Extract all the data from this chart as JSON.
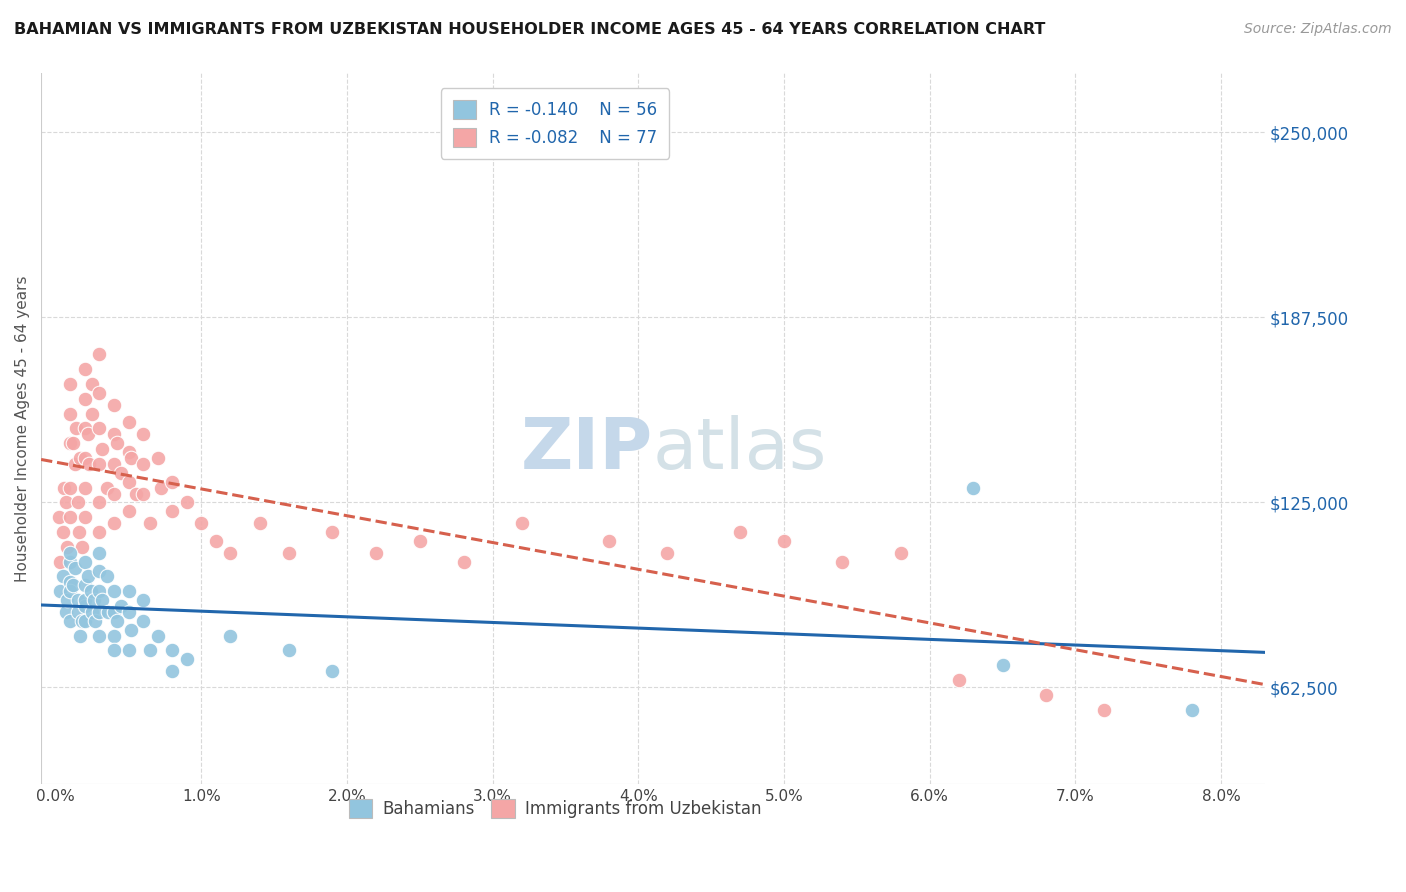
{
  "title": "BAHAMIAN VS IMMIGRANTS FROM UZBEKISTAN HOUSEHOLDER INCOME AGES 45 - 64 YEARS CORRELATION CHART",
  "source": "Source: ZipAtlas.com",
  "ylabel": "Householder Income Ages 45 - 64 years",
  "ytick_labels": [
    "$62,500",
    "$125,000",
    "$187,500",
    "$250,000"
  ],
  "ytick_vals": [
    62500,
    125000,
    187500,
    250000
  ],
  "xlabel_ticks": [
    "0.0%",
    "1.0%",
    "2.0%",
    "3.0%",
    "4.0%",
    "5.0%",
    "6.0%",
    "7.0%",
    "8.0%"
  ],
  "xlabel_vals": [
    0.0,
    0.01,
    0.02,
    0.03,
    0.04,
    0.05,
    0.06,
    0.07,
    0.08
  ],
  "ylim": [
    30000,
    270000
  ],
  "xlim": [
    -0.001,
    0.083
  ],
  "legend_r_blue": "-0.140",
  "legend_n_blue": "56",
  "legend_r_pink": "-0.082",
  "legend_n_pink": "77",
  "blue_color": "#92c5de",
  "pink_color": "#f4a6a6",
  "blue_line_color": "#2166ac",
  "pink_line_color": "#d6604d",
  "title_color": "#1a1a1a",
  "source_color": "#999999",
  "watermark_color": "#c5d8ea",
  "grid_color": "#d9d9d9",
  "blue_scatter_x": [
    0.0003,
    0.0005,
    0.0007,
    0.0008,
    0.001,
    0.001,
    0.001,
    0.001,
    0.001,
    0.0012,
    0.0013,
    0.0015,
    0.0015,
    0.0017,
    0.0018,
    0.002,
    0.002,
    0.002,
    0.002,
    0.002,
    0.0022,
    0.0024,
    0.0025,
    0.0026,
    0.0027,
    0.003,
    0.003,
    0.003,
    0.003,
    0.003,
    0.0032,
    0.0035,
    0.0036,
    0.004,
    0.004,
    0.004,
    0.004,
    0.0042,
    0.0045,
    0.005,
    0.005,
    0.005,
    0.0052,
    0.006,
    0.006,
    0.0065,
    0.007,
    0.008,
    0.008,
    0.009,
    0.012,
    0.016,
    0.019,
    0.063,
    0.065,
    0.078
  ],
  "blue_scatter_y": [
    95000,
    100000,
    88000,
    92000,
    105000,
    98000,
    108000,
    95000,
    85000,
    97000,
    103000,
    88000,
    92000,
    80000,
    85000,
    105000,
    97000,
    90000,
    85000,
    92000,
    100000,
    95000,
    88000,
    92000,
    85000,
    108000,
    102000,
    95000,
    88000,
    80000,
    92000,
    100000,
    88000,
    95000,
    88000,
    80000,
    75000,
    85000,
    90000,
    95000,
    88000,
    75000,
    82000,
    92000,
    85000,
    75000,
    80000,
    75000,
    68000,
    72000,
    80000,
    75000,
    68000,
    130000,
    70000,
    55000
  ],
  "pink_scatter_x": [
    0.0002,
    0.0003,
    0.0005,
    0.0006,
    0.0007,
    0.0008,
    0.001,
    0.001,
    0.001,
    0.001,
    0.001,
    0.0012,
    0.0013,
    0.0014,
    0.0015,
    0.0016,
    0.0017,
    0.0018,
    0.002,
    0.002,
    0.002,
    0.002,
    0.002,
    0.002,
    0.0022,
    0.0023,
    0.0025,
    0.0025,
    0.003,
    0.003,
    0.003,
    0.003,
    0.003,
    0.003,
    0.0032,
    0.0035,
    0.004,
    0.004,
    0.004,
    0.004,
    0.004,
    0.0042,
    0.0045,
    0.005,
    0.005,
    0.005,
    0.005,
    0.0052,
    0.0055,
    0.006,
    0.006,
    0.006,
    0.0065,
    0.007,
    0.0072,
    0.008,
    0.008,
    0.009,
    0.01,
    0.011,
    0.012,
    0.014,
    0.016,
    0.019,
    0.022,
    0.025,
    0.028,
    0.032,
    0.038,
    0.042,
    0.047,
    0.05,
    0.054,
    0.058,
    0.062,
    0.068,
    0.072
  ],
  "pink_scatter_y": [
    120000,
    105000,
    115000,
    130000,
    125000,
    110000,
    165000,
    155000,
    145000,
    130000,
    120000,
    145000,
    138000,
    150000,
    125000,
    115000,
    140000,
    110000,
    170000,
    160000,
    150000,
    140000,
    130000,
    120000,
    148000,
    138000,
    165000,
    155000,
    175000,
    162000,
    150000,
    138000,
    125000,
    115000,
    143000,
    130000,
    158000,
    148000,
    138000,
    128000,
    118000,
    145000,
    135000,
    152000,
    142000,
    132000,
    122000,
    140000,
    128000,
    148000,
    138000,
    128000,
    118000,
    140000,
    130000,
    132000,
    122000,
    125000,
    118000,
    112000,
    108000,
    118000,
    108000,
    115000,
    108000,
    112000,
    105000,
    118000,
    112000,
    108000,
    115000,
    112000,
    105000,
    108000,
    65000,
    60000,
    55000
  ]
}
